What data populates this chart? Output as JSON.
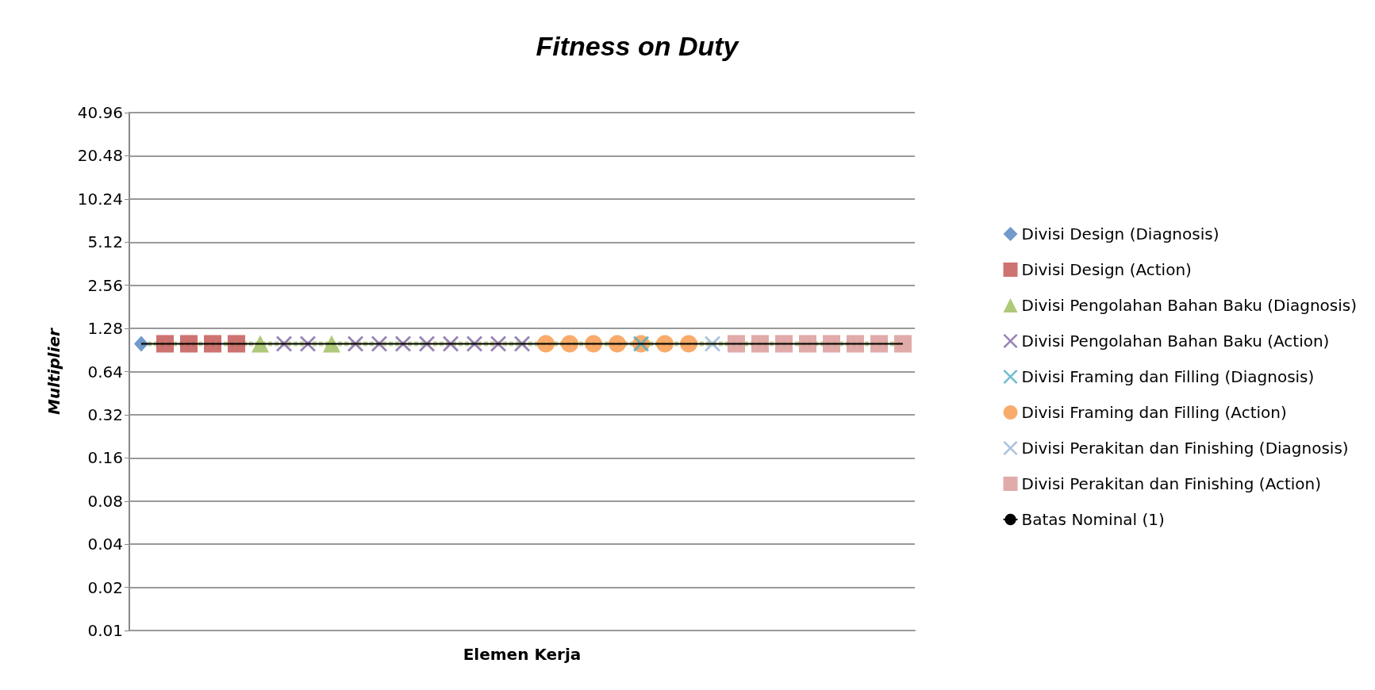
{
  "chart_data": {
    "type": "scatter",
    "title": "Fitness on Duty",
    "xlabel": "Elemen Kerja",
    "ylabel": "Multiplier",
    "log": "y",
    "grid": "y",
    "legend": "right",
    "categories": [
      null,
      null,
      null,
      null,
      null,
      null,
      null,
      null,
      null,
      null,
      null,
      null,
      null,
      null,
      null,
      null,
      null,
      null,
      null,
      null,
      null,
      null,
      null,
      null,
      null,
      null,
      null,
      null,
      null,
      null,
      null,
      null,
      null
    ],
    "ylim": [
      0.01,
      40.96
    ],
    "yticks": [
      0.01,
      0.02,
      0.04,
      0.08,
      0.16,
      0.32,
      0.64,
      1.28,
      2.56,
      5.12,
      10.24,
      20.48,
      40.96
    ],
    "series": [
      {
        "type": "line",
        "color": "#c3d69b",
        "marker": "none",
        "line_style": "dashed",
        "values": [
          1,
          1,
          1,
          1,
          1,
          1,
          1,
          1,
          1,
          1,
          1,
          1,
          1,
          1,
          1,
          1,
          1,
          1,
          1,
          1,
          1,
          1,
          1,
          1,
          1,
          1,
          1,
          1,
          1,
          1,
          1,
          1,
          1
        ]
      },
      {
        "name": "Divisi Design (Diagnosis)",
        "color": "#4f81bd",
        "marker": "diamond",
        "values": [
          1,
          null,
          null,
          null,
          null,
          null,
          null,
          null,
          null,
          null,
          null,
          null,
          null,
          null,
          null,
          null,
          null,
          null,
          null,
          null,
          null,
          null,
          null,
          null,
          null,
          null,
          null,
          null,
          null,
          null,
          null,
          null,
          null
        ]
      },
      {
        "name": "Divisi Design (Action)",
        "color": "#c0504d",
        "marker": "square",
        "values": [
          null,
          1,
          1,
          1,
          1,
          null,
          null,
          null,
          null,
          null,
          null,
          null,
          null,
          null,
          null,
          null,
          null,
          null,
          null,
          null,
          null,
          null,
          null,
          null,
          null,
          null,
          null,
          null,
          null,
          null,
          null,
          null,
          null
        ]
      },
      {
        "name": "Divisi Pengolahan Bahan Baku (Diagnosis)",
        "color": "#9bbb59",
        "marker": "triangle",
        "values": [
          null,
          null,
          null,
          null,
          null,
          1,
          null,
          null,
          1,
          null,
          null,
          null,
          null,
          null,
          null,
          null,
          null,
          null,
          null,
          null,
          null,
          null,
          null,
          null,
          null,
          null,
          null,
          null,
          null,
          null,
          null,
          null,
          null
        ]
      },
      {
        "name": "Divisi Pengolahan Bahan Baku (Action)",
        "color": "#8064a2",
        "marker": "cross",
        "values": [
          null,
          null,
          null,
          null,
          null,
          null,
          1,
          1,
          null,
          1,
          1,
          1,
          1,
          1,
          1,
          1,
          1,
          null,
          null,
          null,
          null,
          null,
          null,
          null,
          null,
          null,
          null,
          null,
          null,
          null,
          null,
          null,
          null
        ]
      },
      {
        "name": "Divisi Framing dan Filling (Diagnosis)",
        "color": "#4bacc6",
        "marker": "cross",
        "values": [
          null,
          null,
          null,
          null,
          null,
          null,
          null,
          null,
          null,
          null,
          null,
          null,
          null,
          null,
          null,
          null,
          null,
          null,
          null,
          null,
          null,
          1,
          null,
          null,
          null,
          null,
          null,
          null,
          null,
          null,
          null,
          null,
          null
        ]
      },
      {
        "name": "Divisi Framing dan Filling (Action)",
        "color": "#f79646",
        "marker": "circle",
        "values": [
          null,
          null,
          null,
          null,
          null,
          null,
          null,
          null,
          null,
          null,
          null,
          null,
          null,
          null,
          null,
          null,
          null,
          1,
          1,
          1,
          1,
          1,
          1,
          1,
          null,
          null,
          null,
          null,
          null,
          null,
          null,
          null,
          null
        ]
      },
      {
        "name": "Divisi Perakitan dan Finishing (Diagnosis)",
        "color": "#95b3d7",
        "marker": "cross",
        "values": [
          null,
          null,
          null,
          null,
          null,
          null,
          null,
          null,
          null,
          null,
          null,
          null,
          null,
          null,
          null,
          null,
          null,
          null,
          null,
          null,
          null,
          null,
          null,
          null,
          1,
          null,
          null,
          null,
          null,
          null,
          null,
          null,
          null
        ]
      },
      {
        "name": "Divisi Perakitan dan Finishing (Action)",
        "color": "#d99694",
        "marker": "square",
        "values": [
          null,
          null,
          null,
          null,
          null,
          null,
          null,
          null,
          null,
          null,
          null,
          null,
          null,
          null,
          null,
          null,
          null,
          null,
          null,
          null,
          null,
          null,
          null,
          null,
          null,
          1,
          1,
          1,
          1,
          1,
          1,
          1,
          1
        ]
      },
      {
        "name": "Batas Nominal (1)",
        "type": "line",
        "color": "#000000",
        "marker": "none",
        "line_style": "solid",
        "values": [
          1,
          1,
          1,
          1,
          1,
          1,
          1,
          1,
          1,
          1,
          1,
          1,
          1,
          1,
          1,
          1,
          1,
          1,
          1,
          1,
          1,
          1,
          1,
          1,
          1,
          1,
          1,
          1,
          1,
          1,
          1,
          1,
          1
        ]
      }
    ]
  }
}
